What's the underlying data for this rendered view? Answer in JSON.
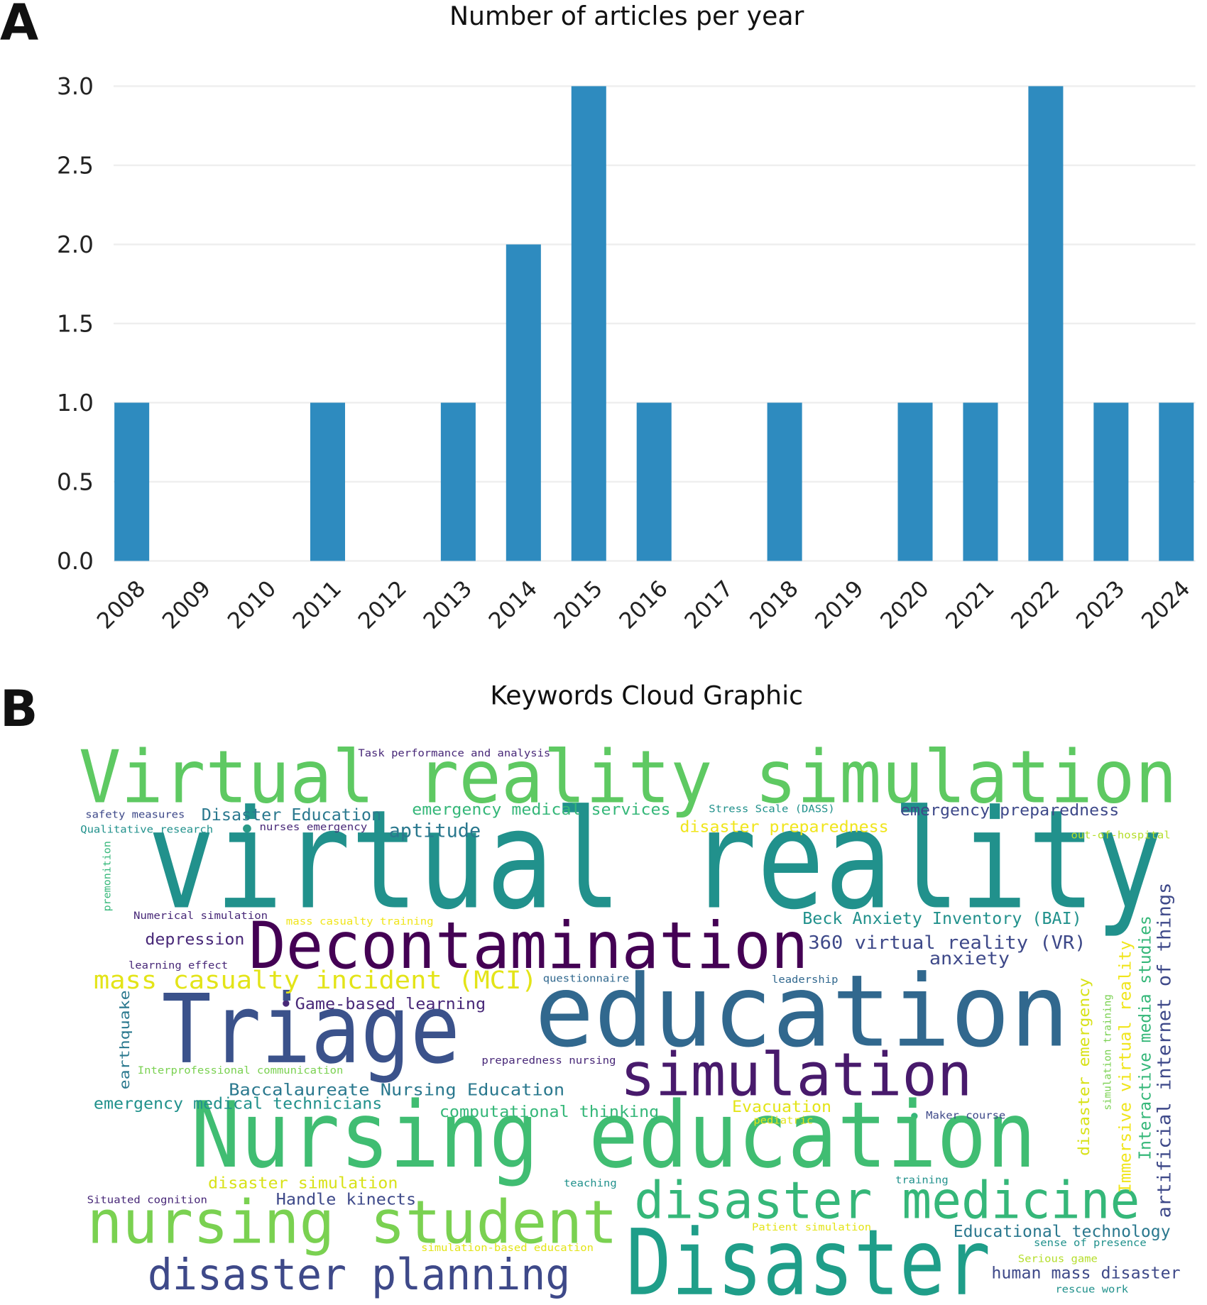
{
  "chart_data": [
    {
      "type": "bar",
      "panel_label": "A",
      "title": "Number of articles per year",
      "categories": [
        "2008",
        "2009",
        "2010",
        "2011",
        "2012",
        "2013",
        "2014",
        "2015",
        "2016",
        "2017",
        "2018",
        "2019",
        "2020",
        "2021",
        "2022",
        "2023",
        "2024"
      ],
      "values": [
        1,
        0,
        0,
        1,
        0,
        1,
        2,
        3,
        1,
        0,
        1,
        0,
        1,
        1,
        3,
        1,
        1
      ],
      "color": "#2e8bbf",
      "ylim": [
        0,
        3
      ],
      "yticks": [
        {
          "value": 0,
          "label": "0.0"
        },
        0.5,
        {
          "value": 1,
          "label": "1.0"
        },
        1.5,
        {
          "value": 2,
          "label": "2.0"
        },
        2.5,
        {
          "value": 3,
          "label": "3.0"
        }
      ],
      "grid": true
    },
    {
      "type": "wordcloud",
      "panel_label": "B",
      "title": "Keywords Cloud Graphic",
      "words": [
        {
          "text": "Virtual reality simulation",
          "color": "#5ec962"
        },
        {
          "text": "virtual reality",
          "color": "#21918c"
        },
        {
          "text": "Decontamination",
          "color": "#440154"
        },
        {
          "text": "education",
          "color": "#31688e"
        },
        {
          "text": "Triage",
          "color": "#3b528b"
        },
        {
          "text": "simulation",
          "color": "#481a6c"
        },
        {
          "text": "Nursing education",
          "color": "#40bd72"
        },
        {
          "text": "nursing student",
          "color": "#7ad151"
        },
        {
          "text": "disaster medicine",
          "color": "#35b779"
        },
        {
          "text": "Disaster",
          "color": "#1f9e89"
        },
        {
          "text": "disaster planning",
          "color": "#3e4989"
        },
        {
          "text": "mass casualty incident (MCI)",
          "color": "#e3e418"
        },
        {
          "text": "Disaster Education",
          "color": "#2a788e"
        },
        {
          "text": "emergency medical services",
          "color": "#35b779"
        },
        {
          "text": "emergency preparedness",
          "color": "#3e4989"
        },
        {
          "text": "disaster preparedness",
          "color": "#f0e51c"
        },
        {
          "text": "aptitude",
          "color": "#2a788e"
        },
        {
          "text": "Task performance and analysis",
          "color": "#482878"
        },
        {
          "text": "safety measures",
          "color": "#3e4989"
        },
        {
          "text": "Qualitative research",
          "color": "#21918c"
        },
        {
          "text": "nurses emergency",
          "color": "#482878"
        },
        {
          "text": "Stress Scale (DASS)",
          "color": "#21918c"
        },
        {
          "text": "out-of-hospital",
          "color": "#b5de2b"
        },
        {
          "text": "premonition",
          "color": "#35b779"
        },
        {
          "text": "Numerical simulation",
          "color": "#482878"
        },
        {
          "text": "mass casualty training",
          "color": "#f0e51c"
        },
        {
          "text": "Beck Anxiety Inventory (BAI)",
          "color": "#21918c"
        },
        {
          "text": "360 virtual reality (VR)",
          "color": "#3e4989"
        },
        {
          "text": "depression",
          "color": "#482878"
        },
        {
          "text": "anxiety",
          "color": "#3e4989"
        },
        {
          "text": "learning effect",
          "color": "#482878"
        },
        {
          "text": "questionnaire",
          "color": "#31688e"
        },
        {
          "text": "leadership",
          "color": "#31688e"
        },
        {
          "text": "Game-based learning",
          "color": "#482878"
        },
        {
          "text": "earthquake",
          "color": "#2a788e"
        },
        {
          "text": "Interprofessional communication",
          "color": "#7ad151"
        },
        {
          "text": "preparedness nursing",
          "color": "#482878"
        },
        {
          "text": "Baccalaureate Nursing Education",
          "color": "#2a788e"
        },
        {
          "text": "emergency medical technicians",
          "color": "#21918c"
        },
        {
          "text": "computational thinking",
          "color": "#35b779"
        },
        {
          "text": "Evacuation",
          "color": "#e3e418"
        },
        {
          "text": "Maker course",
          "color": "#3e4989"
        },
        {
          "text": "pediatric",
          "color": "#e3e418"
        },
        {
          "text": "disaster simulation",
          "color": "#d8e219"
        },
        {
          "text": "teaching",
          "color": "#21918c"
        },
        {
          "text": "training",
          "color": "#21918c"
        },
        {
          "text": "Situated cognition",
          "color": "#482878"
        },
        {
          "text": "Handle kinects",
          "color": "#3e4989"
        },
        {
          "text": "Patient simulation",
          "color": "#e3e418"
        },
        {
          "text": "Educational technology",
          "color": "#2a788e"
        },
        {
          "text": "sense of presence",
          "color": "#21918c"
        },
        {
          "text": "simulation-based education",
          "color": "#e3e418"
        },
        {
          "text": "Serious game",
          "color": "#b5de2b"
        },
        {
          "text": "human mass disaster",
          "color": "#3e4989"
        },
        {
          "text": "rescue work",
          "color": "#21918c"
        },
        {
          "text": "disaster emergency",
          "color": "#d8e219"
        },
        {
          "text": "simulation training",
          "color": "#7ad151"
        },
        {
          "text": "Immersive virtual reality",
          "color": "#f0e51c"
        },
        {
          "text": "Interactive media studies",
          "color": "#35b779"
        },
        {
          "text": "artificial internet of things",
          "color": "#3e4989"
        }
      ]
    }
  ]
}
